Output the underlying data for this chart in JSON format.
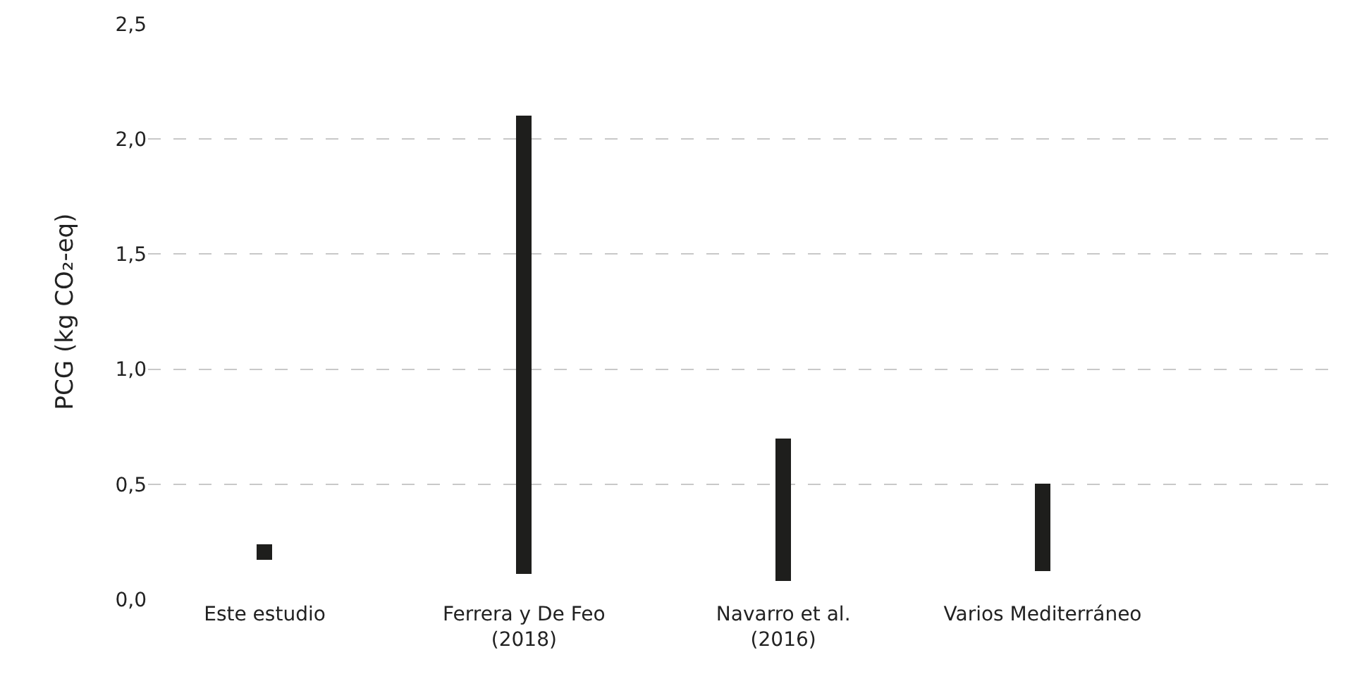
{
  "chart_data": {
    "type": "bar",
    "ylabel": "PCG (kg CO₂-eq)",
    "categories": [
      "Este estudio",
      "Ferrera y De Feo\n(2018)",
      "Navarro et al.\n(2016)",
      "Varios Mediterráneo"
    ],
    "base": [
      0.17,
      0.11,
      0.08,
      0.12
    ],
    "values": [
      0.07,
      1.99,
      0.62,
      0.38
    ],
    "color": "#1e1e1c",
    "ylim": [
      0,
      2.5
    ],
    "yticks": [
      {
        "value": 0,
        "label": "0,0"
      },
      {
        "value": 0.5,
        "label": "0,5"
      },
      {
        "value": 1,
        "label": "1,0"
      },
      {
        "value": 1.5,
        "label": "1,5"
      },
      {
        "value": 2,
        "label": "2,0"
      },
      {
        "value": 2.5,
        "label": "2,5"
      }
    ],
    "grid": "y"
  }
}
